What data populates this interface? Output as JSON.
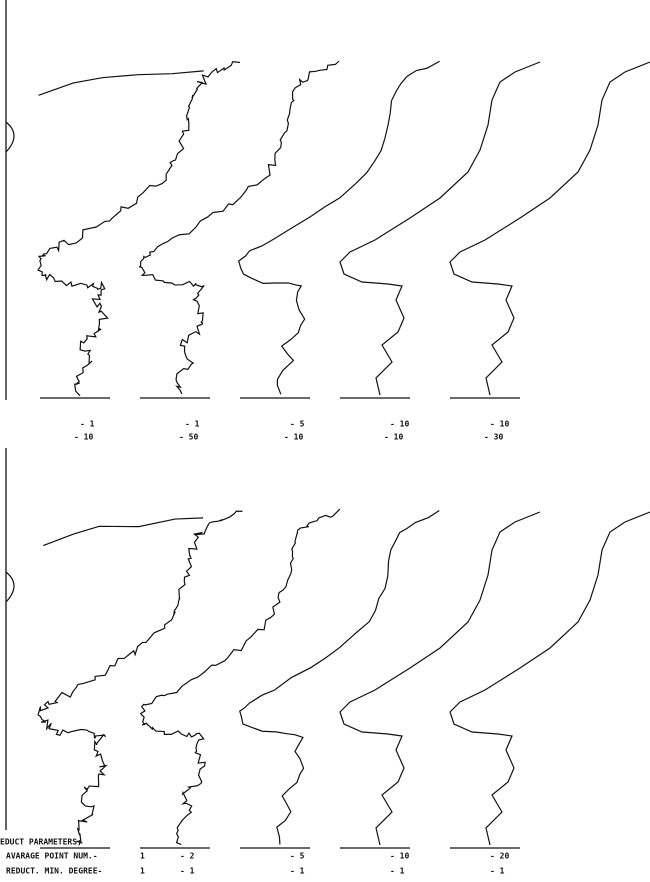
{
  "top_panel": {
    "labels": [
      {
        "avg": "- 1",
        "deg": "- 10"
      },
      {
        "avg": "- 1",
        "deg": "- 50"
      },
      {
        "avg": "- 5",
        "deg": "- 10"
      },
      {
        "avg": "- 10",
        "deg": "- 10"
      },
      {
        "avg": "- 10",
        "deg": "- 30"
      }
    ]
  },
  "bottom_panel": {
    "header": "EDUCT PARAMETERS;",
    "row_labels": [
      "AVARAGE POINT NUM.-",
      "REDUCT. MIN. DEGREE-"
    ],
    "labels": [
      {
        "avg": "1",
        "deg": "1"
      },
      {
        "avg": "- 2",
        "deg": "- 1"
      },
      {
        "avg": "- 5",
        "deg": "- 1"
      },
      {
        "avg": "- 10",
        "deg": "- 1"
      },
      {
        "avg": "- 20",
        "deg": "- 1"
      }
    ]
  }
}
